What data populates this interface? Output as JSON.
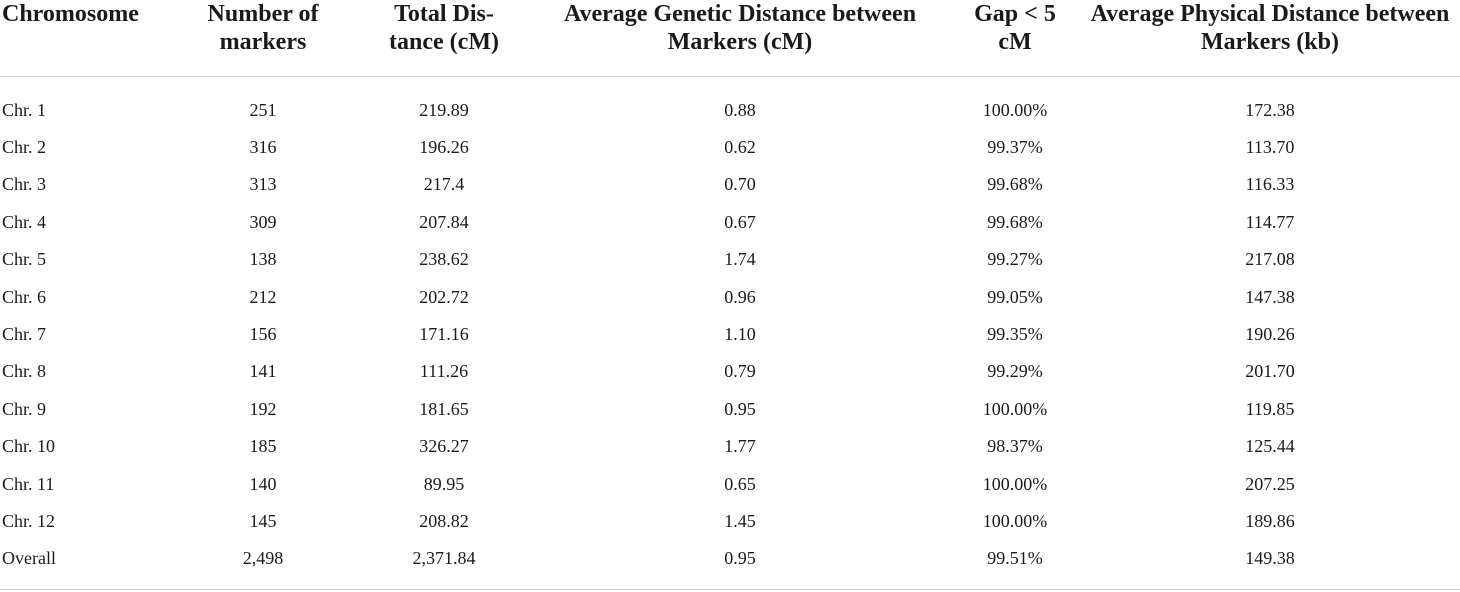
{
  "table": {
    "headers": [
      [
        "Chromosome"
      ],
      [
        "Number of",
        "markers"
      ],
      [
        "Total Dis-",
        "tance (cM)"
      ],
      [
        "Average Genetic Distance between",
        "Markers (cM)"
      ],
      [
        "Gap < 5",
        "cM"
      ],
      [
        "Average Physical Distance between",
        "Markers (kb)"
      ]
    ],
    "rows": [
      [
        "Chr. 1",
        "251",
        "219.89",
        "0.88",
        "100.00%",
        "172.38"
      ],
      [
        "Chr. 2",
        "316",
        "196.26",
        "0.62",
        "99.37%",
        "113.70"
      ],
      [
        "Chr. 3",
        "313",
        "217.4",
        "0.70",
        "99.68%",
        "116.33"
      ],
      [
        "Chr. 4",
        "309",
        "207.84",
        "0.67",
        "99.68%",
        "114.77"
      ],
      [
        "Chr. 5",
        "138",
        "238.62",
        "1.74",
        "99.27%",
        "217.08"
      ],
      [
        "Chr. 6",
        "212",
        "202.72",
        "0.96",
        "99.05%",
        "147.38"
      ],
      [
        "Chr. 7",
        "156",
        "171.16",
        "1.10",
        "99.35%",
        "190.26"
      ],
      [
        "Chr. 8",
        "141",
        "111.26",
        "0.79",
        "99.29%",
        "201.70"
      ],
      [
        "Chr. 9",
        "192",
        "181.65",
        "0.95",
        "100.00%",
        "119.85"
      ],
      [
        "Chr. 10",
        "185",
        "326.27",
        "1.77",
        "98.37%",
        "125.44"
      ],
      [
        "Chr. 11",
        "140",
        "89.95",
        "0.65",
        "100.00%",
        "207.25"
      ],
      [
        "Chr. 12",
        "145",
        "208.82",
        "1.45",
        "100.00%",
        "189.86"
      ],
      [
        "Overall",
        "2,498",
        "2,371.84",
        "0.95",
        "99.51%",
        "149.38"
      ]
    ]
  }
}
